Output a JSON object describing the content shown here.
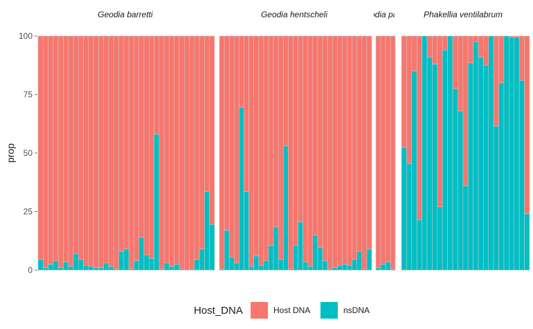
{
  "chart_data": {
    "type": "bar",
    "stacked": true,
    "ylabel": "prop",
    "xlabel": "",
    "ylim": [
      0,
      100
    ],
    "yticks": [
      0,
      25,
      50,
      75,
      100
    ],
    "legend": {
      "title": "Host_DNA",
      "position": "bottom",
      "entries": [
        {
          "name": "Host DNA",
          "color": "#F8766D"
        },
        {
          "name": "nsDNA",
          "color": "#00BFC4"
        }
      ]
    },
    "facets": [
      {
        "label": "Geodia barretti",
        "nsDNA": [
          4.5,
          1,
          2.5,
          4,
          1,
          3.5,
          1.5,
          7,
          4.5,
          2,
          1.5,
          1,
          1,
          3,
          1.5,
          0.5,
          8,
          9,
          0.5,
          4,
          14,
          6.5,
          5,
          58,
          0.5,
          3,
          1.5,
          2.5,
          0.5,
          0,
          0.5,
          4.5,
          9,
          33.5,
          19.5
        ]
      },
      {
        "label": "Geodia hentscheli",
        "nsDNA": [
          0.5,
          17,
          5.5,
          3,
          69.5,
          33.5,
          1.5,
          6,
          2,
          4,
          10.5,
          18.5,
          4.5,
          53,
          0.5,
          10.5,
          20.5,
          3.5,
          1.5,
          15,
          9.5,
          4,
          0.5,
          1,
          2,
          2.5,
          2,
          4.5,
          8,
          0.5,
          9
        ]
      },
      {
        "label": "Geodia parva",
        "nsDNA": [
          1,
          2.5,
          3.5,
          0.5
        ]
      },
      {
        "label": "Phakellia ventilabrum",
        "nsDNA": [
          52.5,
          45.5,
          85,
          21.5,
          100,
          91,
          88,
          27,
          94,
          100,
          77.5,
          68,
          36,
          88.5,
          97.5,
          91,
          87.5,
          100,
          61.5,
          80,
          100,
          99.5,
          99.5,
          81,
          24
        ]
      }
    ]
  }
}
